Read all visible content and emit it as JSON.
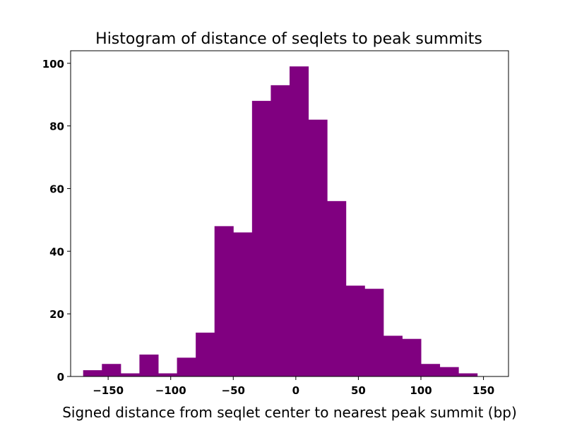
{
  "chart_data": {
    "type": "bar",
    "title": "Histogram of distance of seqlets to peak summits",
    "xlabel": "Signed distance from seqlet center to nearest peak summit (bp)",
    "ylabel": "",
    "xlim": [
      -180,
      170
    ],
    "ylim": [
      0,
      104
    ],
    "xticks": [
      -150,
      -100,
      -50,
      0,
      50,
      100,
      150
    ],
    "xtick_labels": [
      "−150",
      "−100",
      "−50",
      "0",
      "50",
      "100",
      "150"
    ],
    "yticks": [
      0,
      20,
      40,
      60,
      80,
      100
    ],
    "ytick_labels": [
      "0",
      "20",
      "40",
      "60",
      "80",
      "100"
    ],
    "bar_color": "#800080",
    "bins": [
      {
        "x0": -170,
        "x1": -155,
        "count": 2
      },
      {
        "x0": -155,
        "x1": -140,
        "count": 4
      },
      {
        "x0": -140,
        "x1": -125,
        "count": 1
      },
      {
        "x0": -125,
        "x1": -110,
        "count": 7
      },
      {
        "x0": -110,
        "x1": -95,
        "count": 1
      },
      {
        "x0": -95,
        "x1": -80,
        "count": 6
      },
      {
        "x0": -80,
        "x1": -65,
        "count": 14
      },
      {
        "x0": -65,
        "x1": -50,
        "count": 48
      },
      {
        "x0": -50,
        "x1": -35,
        "count": 46
      },
      {
        "x0": -35,
        "x1": -20,
        "count": 88
      },
      {
        "x0": -20,
        "x1": -5,
        "count": 93
      },
      {
        "x0": -5,
        "x1": 10,
        "count": 99
      },
      {
        "x0": 10,
        "x1": 25,
        "count": 82
      },
      {
        "x0": 25,
        "x1": 40,
        "count": 56
      },
      {
        "x0": 40,
        "x1": 55,
        "count": 29
      },
      {
        "x0": 55,
        "x1": 70,
        "count": 28
      },
      {
        "x0": 70,
        "x1": 85,
        "count": 13
      },
      {
        "x0": 85,
        "x1": 100,
        "count": 12
      },
      {
        "x0": 100,
        "x1": 115,
        "count": 4
      },
      {
        "x0": 115,
        "x1": 130,
        "count": 3
      },
      {
        "x0": 130,
        "x1": 145,
        "count": 1
      }
    ],
    "grid": false,
    "legend": false
  }
}
